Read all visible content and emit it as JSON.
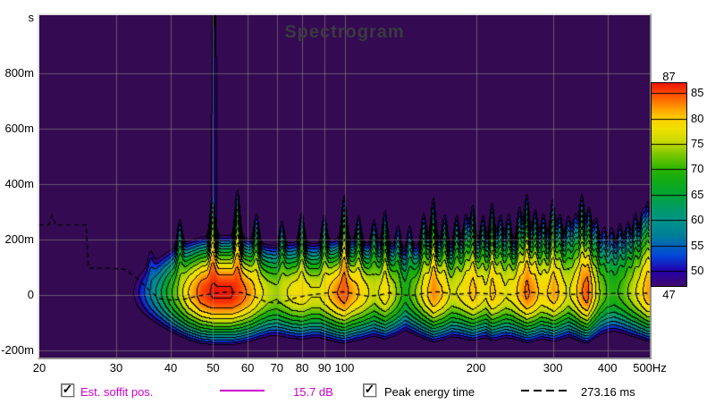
{
  "chart_data": {
    "type": "heatmap",
    "variant": "spectrogram",
    "title": "Spectrogram",
    "background_color": "#340a52",
    "grid_color": "rgba(160,160,135,0.5)",
    "contour_step_db": 3.3,
    "contour_color": "#000000",
    "x_axis": {
      "scale": "log",
      "unit": "Hz",
      "range": [
        20,
        500
      ],
      "ticks": [
        {
          "f": 20,
          "label": "20",
          "grid": false
        },
        {
          "f": 30,
          "label": "30",
          "grid": true
        },
        {
          "f": 40,
          "label": "40",
          "grid": true
        },
        {
          "f": 50,
          "label": "50",
          "grid": true
        },
        {
          "f": 60,
          "label": "60",
          "grid": true
        },
        {
          "f": 70,
          "label": "70",
          "grid": true
        },
        {
          "f": 80,
          "label": "80",
          "grid": true
        },
        {
          "f": 90,
          "label": "90",
          "grid": true
        },
        {
          "f": 100,
          "label": "100",
          "grid": true
        },
        {
          "f": 200,
          "label": "200",
          "grid": true
        },
        {
          "f": 300,
          "label": "300",
          "grid": true
        },
        {
          "f": 400,
          "label": "400",
          "grid": true
        },
        {
          "f": 500,
          "label": "500Hz",
          "grid": true
        }
      ]
    },
    "y_axis": {
      "unit": "s",
      "range_ms": [
        -225,
        1009
      ],
      "ticks": [
        {
          "t": 1000,
          "label": "s",
          "grid": false
        },
        {
          "t": 800,
          "label": "800m",
          "grid": true
        },
        {
          "t": 600,
          "label": "600m",
          "grid": true
        },
        {
          "t": 400,
          "label": "400m",
          "grid": true
        },
        {
          "t": 200,
          "label": "200m",
          "grid": true
        },
        {
          "t": 0,
          "label": "0",
          "grid": true
        },
        {
          "t": -200,
          "label": "-200m",
          "grid": true
        }
      ]
    },
    "colorbar": {
      "min": 47,
      "max": 87,
      "top_label": "87",
      "bottom_label": "47",
      "side_ticks": [
        85,
        80,
        75,
        70,
        65,
        60,
        55,
        50
      ],
      "palette": [
        [
          47,
          "#3f0a6b"
        ],
        [
          50,
          "#2400ae"
        ],
        [
          53,
          "#0048d8"
        ],
        [
          57,
          "#008098"
        ],
        [
          60,
          "#009488"
        ],
        [
          63,
          "#009e5c"
        ],
        [
          65,
          "#00a434"
        ],
        [
          68,
          "#14ac14"
        ],
        [
          70,
          "#2cb400"
        ],
        [
          73,
          "#7cc800"
        ],
        [
          75,
          "#c0d800"
        ],
        [
          78,
          "#f0e000"
        ],
        [
          80,
          "#ffd000"
        ],
        [
          82,
          "#ff9c00"
        ],
        [
          84,
          "#ff6400"
        ],
        [
          85,
          "#ff4a00"
        ],
        [
          86,
          "#f52d00"
        ],
        [
          87,
          "#e81600"
        ]
      ]
    },
    "field_model": {
      "peak_time_ms": 8,
      "gauss_k_db": 12,
      "sigma_down_ms": 103,
      "sigma_up_base_ms": 112,
      "mode_log_width": 0.0075,
      "peak_envelope_db": [
        [
          20,
          18
        ],
        [
          28,
          30
        ],
        [
          31,
          40
        ],
        [
          33,
          47
        ],
        [
          35,
          54
        ],
        [
          38,
          63
        ],
        [
          41,
          72
        ],
        [
          44,
          80
        ],
        [
          47,
          85
        ],
        [
          50,
          87
        ],
        [
          55,
          87
        ],
        [
          58,
          85
        ],
        [
          61,
          82
        ],
        [
          64,
          78
        ],
        [
          67,
          75
        ],
        [
          70,
          74
        ],
        [
          73,
          76
        ],
        [
          76,
          78
        ],
        [
          80,
          79
        ],
        [
          84,
          77
        ],
        [
          88,
          77
        ],
        [
          92,
          80
        ],
        [
          96,
          83
        ],
        [
          100,
          85
        ],
        [
          104,
          82
        ],
        [
          110,
          79
        ],
        [
          117,
          75
        ],
        [
          124,
          79
        ],
        [
          131,
          74
        ],
        [
          138,
          68
        ],
        [
          145,
          73
        ],
        [
          152,
          78
        ],
        [
          160,
          83
        ],
        [
          168,
          80
        ],
        [
          176,
          76
        ],
        [
          183,
          77
        ],
        [
          190,
          79
        ],
        [
          197,
          81
        ],
        [
          204,
          79
        ],
        [
          211,
          77
        ],
        [
          218,
          81
        ],
        [
          226,
          79
        ],
        [
          234,
          77
        ],
        [
          242,
          78
        ],
        [
          252,
          81
        ],
        [
          262,
          84
        ],
        [
          272,
          82
        ],
        [
          282,
          79
        ],
        [
          292,
          80
        ],
        [
          302,
          82
        ],
        [
          314,
          79
        ],
        [
          326,
          76
        ],
        [
          338,
          79
        ],
        [
          350,
          83
        ],
        [
          360,
          85
        ],
        [
          372,
          79
        ],
        [
          386,
          73
        ],
        [
          400,
          70
        ],
        [
          415,
          69
        ],
        [
          432,
          71
        ],
        [
          450,
          74
        ],
        [
          468,
          77
        ],
        [
          484,
          80
        ],
        [
          495,
          82
        ],
        [
          500,
          82
        ]
      ],
      "modes_sigma_boost_ms": [
        [
          36,
          50
        ],
        [
          42,
          60
        ],
        [
          50,
          85
        ],
        [
          57,
          95
        ],
        [
          63,
          60
        ],
        [
          72,
          55
        ],
        [
          80,
          65
        ],
        [
          90,
          60
        ],
        [
          100,
          85
        ],
        [
          108,
          55
        ],
        [
          117,
          60
        ],
        [
          124,
          70
        ],
        [
          133,
          55
        ],
        [
          141,
          60
        ],
        [
          152,
          65
        ],
        [
          160,
          85
        ],
        [
          170,
          60
        ],
        [
          181,
          65
        ],
        [
          190,
          60
        ],
        [
          197,
          75
        ],
        [
          208,
          60
        ],
        [
          218,
          80
        ],
        [
          228,
          60
        ],
        [
          238,
          65
        ],
        [
          252,
          70
        ],
        [
          262,
          90
        ],
        [
          274,
          65
        ],
        [
          286,
          60
        ],
        [
          300,
          85
        ],
        [
          312,
          60
        ],
        [
          326,
          65
        ],
        [
          338,
          60
        ],
        [
          350,
          90
        ],
        [
          364,
          65
        ],
        [
          378,
          60
        ],
        [
          394,
          55
        ],
        [
          410,
          60
        ],
        [
          428,
          65
        ],
        [
          446,
          60
        ],
        [
          464,
          70
        ],
        [
          482,
          65
        ],
        [
          496,
          75
        ]
      ],
      "streak": {
        "f": 50.4,
        "log_width": 0.0042,
        "peak_db": 52.3,
        "slope_db_per_ms": 0.0016,
        "t_min_ms": 110
      }
    },
    "peak_energy_line": {
      "color": "#000000",
      "dash": [
        5,
        4
      ],
      "points": [
        [
          20,
          253
        ],
        [
          21,
          253
        ],
        [
          21.4,
          288
        ],
        [
          21.8,
          253
        ],
        [
          25.6,
          253
        ],
        [
          25.9,
          98
        ],
        [
          29,
          97
        ],
        [
          31.5,
          92
        ],
        [
          33.5,
          60
        ],
        [
          35.5,
          22
        ],
        [
          37.5,
          -12
        ],
        [
          40,
          -18
        ],
        [
          43,
          -14
        ],
        [
          46,
          -4
        ],
        [
          50,
          6
        ],
        [
          54,
          11
        ],
        [
          58,
          9
        ],
        [
          62,
          -4
        ],
        [
          66,
          -24
        ],
        [
          70,
          -30
        ],
        [
          74,
          -20
        ],
        [
          78,
          -8
        ],
        [
          83,
          0
        ],
        [
          88,
          5
        ],
        [
          93,
          9
        ],
        [
          100,
          12
        ],
        [
          106,
          4
        ],
        [
          113,
          -4
        ],
        [
          120,
          0
        ],
        [
          126,
          8
        ],
        [
          133,
          3
        ],
        [
          141,
          -2
        ],
        [
          148,
          3
        ],
        [
          156,
          9
        ],
        [
          163,
          12
        ],
        [
          171,
          8
        ],
        [
          179,
          3
        ],
        [
          188,
          5
        ],
        [
          197,
          9
        ],
        [
          205,
          7
        ],
        [
          214,
          4
        ],
        [
          222,
          9
        ],
        [
          231,
          5
        ],
        [
          240,
          2
        ],
        [
          250,
          7
        ],
        [
          261,
          12
        ],
        [
          272,
          9
        ],
        [
          284,
          5
        ],
        [
          296,
          7
        ],
        [
          308,
          10
        ],
        [
          320,
          6
        ],
        [
          333,
          3
        ],
        [
          345,
          6
        ],
        [
          357,
          11
        ],
        [
          371,
          8
        ],
        [
          386,
          4
        ],
        [
          401,
          5
        ],
        [
          417,
          7
        ],
        [
          434,
          5
        ],
        [
          452,
          6
        ],
        [
          470,
          5
        ],
        [
          486,
          7
        ],
        [
          500,
          7
        ]
      ]
    }
  },
  "legend": {
    "check_icon": "✓",
    "items": [
      {
        "label": "Est. soffit pos.",
        "value": "15.7 dB",
        "checked": true,
        "color": "#cc00cc",
        "line_style": "solid"
      },
      {
        "label": "Peak energy time",
        "value": "273.16 ms",
        "checked": true,
        "color": "#000000",
        "line_style": "dashed"
      }
    ]
  }
}
